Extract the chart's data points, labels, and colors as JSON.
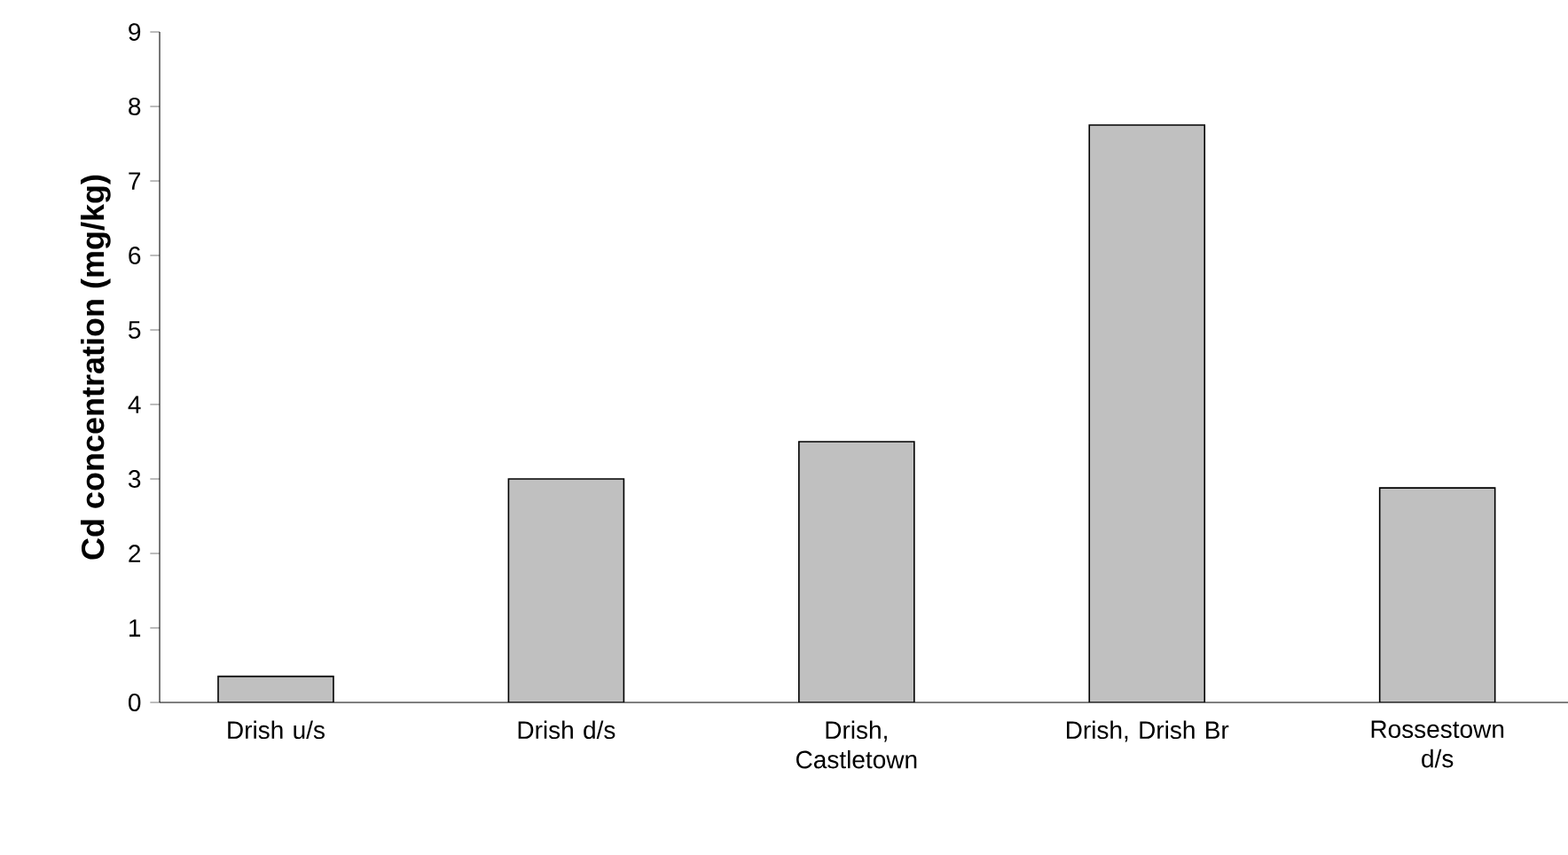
{
  "chart_data": {
    "type": "bar",
    "ylabel": "Cd concentration (mg/kg)",
    "categories": [
      "Drish u/s",
      "Drish d/s",
      "Drish, Castletown",
      "Drish, Drish Br",
      "Rossestown d/s"
    ],
    "values": [
      0.35,
      3.0,
      3.5,
      7.75,
      2.88
    ],
    "color": "#c0c0c0",
    "ylim": [
      0,
      9
    ],
    "yticks": [
      0,
      1,
      2,
      3,
      4,
      5,
      6,
      7,
      8,
      9
    ]
  }
}
